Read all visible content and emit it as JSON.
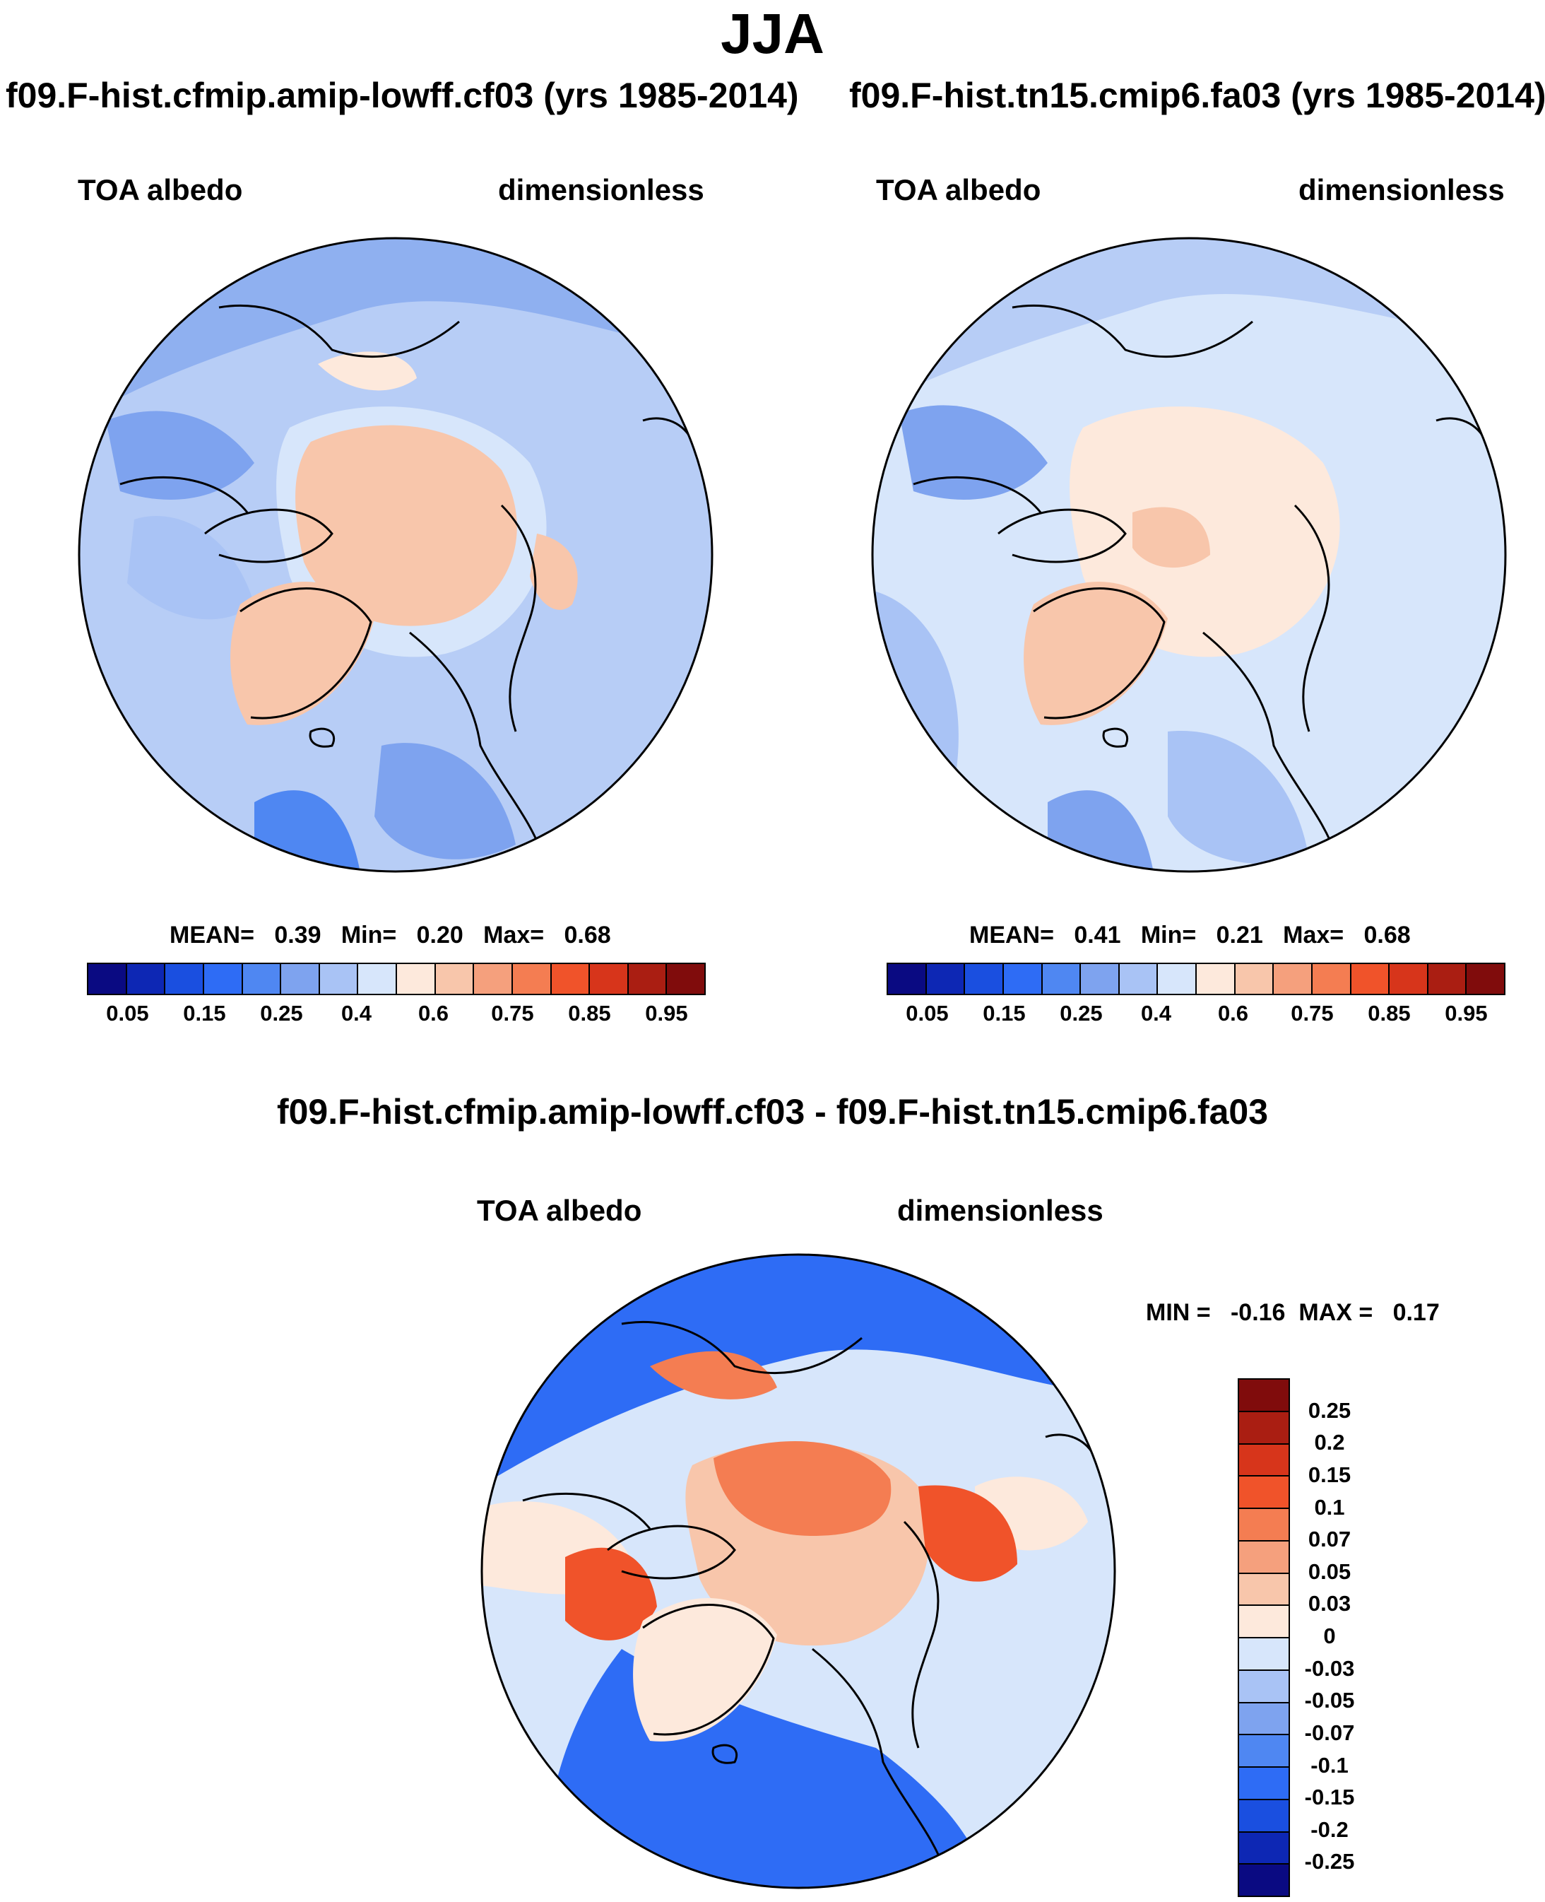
{
  "season": "JJA",
  "panels": [
    {
      "case_title": "f09.F-hist.cfmip.amip-lowff.cf03 (yrs 1985-2014)",
      "variable": "TOA albedo",
      "units": "dimensionless",
      "stats": {
        "mean": "0.39",
        "min": "0.20",
        "max": "0.68"
      }
    },
    {
      "case_title": "f09.F-hist.tn15.cmip6.fa03 (yrs 1985-2014)",
      "variable": "TOA albedo",
      "units": "dimensionless",
      "stats": {
        "mean": "0.41",
        "min": "0.21",
        "max": "0.68"
      }
    },
    {
      "case_title": "f09.F-hist.cfmip.amip-lowff.cf03 - f09.F-hist.tn15.cmip6.fa03",
      "variable": "TOA albedo",
      "units": "dimensionless",
      "stats": {
        "min": "-0.16",
        "max": "0.17"
      }
    }
  ],
  "labels": {
    "mean": "MEAN=",
    "min": "Min=",
    "max": "Max=",
    "diff_min": "MIN =",
    "diff_max": "MAX ="
  },
  "chart_data": [
    {
      "type": "heatmap",
      "projection": "north polar stereographic",
      "field": "TOA albedo",
      "units": "dimensionless",
      "mean": 0.39,
      "min": 0.2,
      "max": 0.68,
      "colorbar_ticks": [
        "0.05",
        "0.15",
        "0.25",
        "0.4",
        "0.6",
        "0.75",
        "0.85",
        "0.95"
      ],
      "colorbar_levels": [
        0.05,
        0.1,
        0.15,
        0.2,
        0.25,
        0.3,
        0.4,
        0.5,
        0.6,
        0.7,
        0.75,
        0.8,
        0.85,
        0.9,
        0.95
      ],
      "colorbar_colors": [
        "#0a0a82",
        "#0d27b4",
        "#1a4fe0",
        "#2e6cf5",
        "#4f87f2",
        "#7ea3ef",
        "#a9c3f5",
        "#d7e6fb",
        "#fde9dc",
        "#f8c6ab",
        "#f5a07d",
        "#f47d52",
        "#f0532a",
        "#d7351b",
        "#aa1e12",
        "#800c0c"
      ]
    },
    {
      "type": "heatmap",
      "projection": "north polar stereographic",
      "field": "TOA albedo",
      "units": "dimensionless",
      "mean": 0.41,
      "min": 0.21,
      "max": 0.68,
      "colorbar_ticks": [
        "0.05",
        "0.15",
        "0.25",
        "0.4",
        "0.6",
        "0.75",
        "0.85",
        "0.95"
      ],
      "colorbar_levels": [
        0.05,
        0.1,
        0.15,
        0.2,
        0.25,
        0.3,
        0.4,
        0.5,
        0.6,
        0.7,
        0.75,
        0.8,
        0.85,
        0.9,
        0.95
      ],
      "colorbar_colors": [
        "#0a0a82",
        "#0d27b4",
        "#1a4fe0",
        "#2e6cf5",
        "#4f87f2",
        "#7ea3ef",
        "#a9c3f5",
        "#d7e6fb",
        "#fde9dc",
        "#f8c6ab",
        "#f5a07d",
        "#f47d52",
        "#f0532a",
        "#d7351b",
        "#aa1e12",
        "#800c0c"
      ]
    },
    {
      "type": "heatmap",
      "projection": "north polar stereographic",
      "field": "TOA albedo difference",
      "units": "dimensionless",
      "min": -0.16,
      "max": 0.17,
      "colorbar_ticks": [
        "0.25",
        "0.2",
        "0.15",
        "0.1",
        "0.07",
        "0.05",
        "0.03",
        "0",
        "-0.03",
        "-0.05",
        "-0.07",
        "-0.1",
        "-0.15",
        "-0.2",
        "-0.25"
      ],
      "colorbar_colors": [
        "#800c0c",
        "#aa1e12",
        "#d7351b",
        "#f0532a",
        "#f47d52",
        "#f5a07d",
        "#f8c6ab",
        "#fde9dc",
        "#d7e6fb",
        "#a9c3f5",
        "#7ea3ef",
        "#4f87f2",
        "#2e6cf5",
        "#1a4fe0",
        "#0d27b4",
        "#0a0a82"
      ]
    }
  ],
  "colors": {
    "ocean_mid": "#b7cdf6",
    "ocean_low": "#8fb0f0",
    "land_low": "#7ea3ef",
    "ice_high": "#f8c6ab",
    "diff_neg": "#2e6cf5",
    "diff_pos": "#f47d52"
  }
}
